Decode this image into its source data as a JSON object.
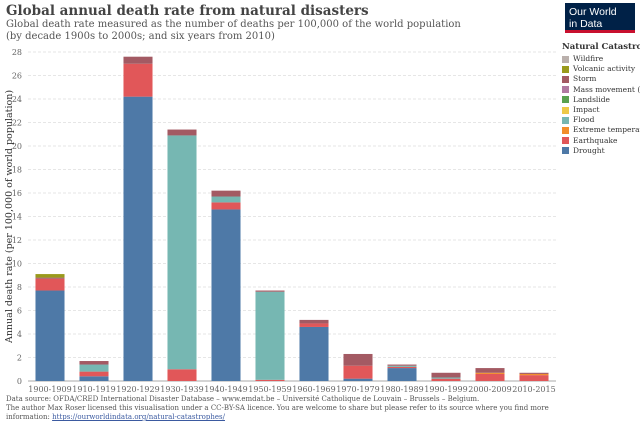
{
  "title": "Global annual death rate from natural disasters",
  "subtitle_line1": "Global death rate measured as the number of deaths per 100,000 of the world population",
  "subtitle_line2": "(by decade 1900s to 2000s; and six years from 2010)",
  "logo_line1": "Our World",
  "logo_line2": "in Data",
  "footer_line1": "Data source: OFDA/CRED International Disaster Database – www.emdat.be – Université Catholique de Louvain – Brussels – Belgium.",
  "footer_line2": "The author Max Roser licensed this visualisation under a CC-BY-SA licence. You are welcome to share but please refer to its source where you find more",
  "footer_line3_prefix": "information: ",
  "footer_link": "https://ourworldindata.org/natural-catastrophes/",
  "chart_data": {
    "type": "bar",
    "stacked": true,
    "title": "Global annual death rate from natural disasters",
    "xlabel": "",
    "ylabel": "Annual death rate (per 100,000 of world population)",
    "ylim": [
      0,
      28
    ],
    "yticks": [
      0,
      2,
      4,
      6,
      8,
      10,
      12,
      14,
      16,
      18,
      20,
      22,
      24,
      26,
      28
    ],
    "grid": true,
    "legend_title": "Natural Catastrophe",
    "legend_position": "right",
    "categories": [
      "1900-1909",
      "1910-1919",
      "1920-1929",
      "1930-1939",
      "1940-1949",
      "1950-1959",
      "1960-1969",
      "1970-1979",
      "1980-1989",
      "1990-1999",
      "2000-2009",
      "2010-2015"
    ],
    "series": [
      {
        "name": "Drought",
        "color": "#4e79a7",
        "values": [
          7.7,
          0.4,
          24.2,
          0.0,
          14.6,
          0.0,
          4.6,
          0.2,
          1.1,
          0.0,
          0.0,
          0.0
        ]
      },
      {
        "name": "Earthquake",
        "color": "#e15759",
        "values": [
          1.0,
          0.4,
          2.8,
          1.0,
          0.6,
          0.1,
          0.3,
          1.1,
          0.1,
          0.2,
          0.6,
          0.5
        ]
      },
      {
        "name": "Extreme temperature",
        "color": "#f28e2b",
        "values": [
          0.0,
          0.0,
          0.0,
          0.0,
          0.0,
          0.0,
          0.0,
          0.0,
          0.0,
          0.0,
          0.1,
          0.1
        ]
      },
      {
        "name": "Flood",
        "color": "#76b7b2",
        "values": [
          0.0,
          0.6,
          0.0,
          19.9,
          0.5,
          7.5,
          0.0,
          0.0,
          0.1,
          0.1,
          0.0,
          0.0
        ]
      },
      {
        "name": "Impact",
        "color": "#edc948",
        "values": [
          0.0,
          0.0,
          0.0,
          0.0,
          0.0,
          0.0,
          0.0,
          0.0,
          0.0,
          0.0,
          0.0,
          0.0
        ]
      },
      {
        "name": "Landslide",
        "color": "#59a14f",
        "values": [
          0.0,
          0.0,
          0.0,
          0.0,
          0.0,
          0.0,
          0.0,
          0.0,
          0.0,
          0.0,
          0.0,
          0.0
        ]
      },
      {
        "name": "Mass movement (dry)",
        "color": "#b07aa1",
        "values": [
          0.0,
          0.0,
          0.0,
          0.0,
          0.0,
          0.0,
          0.0,
          0.0,
          0.0,
          0.0,
          0.0,
          0.0
        ]
      },
      {
        "name": "Storm",
        "color": "#a35a63",
        "values": [
          0.1,
          0.3,
          0.6,
          0.5,
          0.5,
          0.1,
          0.3,
          1.0,
          0.1,
          0.4,
          0.4,
          0.1
        ]
      },
      {
        "name": "Volcanic activity",
        "color": "#9a9a1c",
        "values": [
          0.3,
          0.0,
          0.0,
          0.0,
          0.0,
          0.0,
          0.0,
          0.0,
          0.0,
          0.0,
          0.0,
          0.0
        ]
      },
      {
        "name": "Wildfire",
        "color": "#bab0ac",
        "values": [
          0.0,
          0.0,
          0.0,
          0.0,
          0.0,
          0.0,
          0.0,
          0.0,
          0.0,
          0.0,
          0.0,
          0.0
        ]
      }
    ]
  }
}
